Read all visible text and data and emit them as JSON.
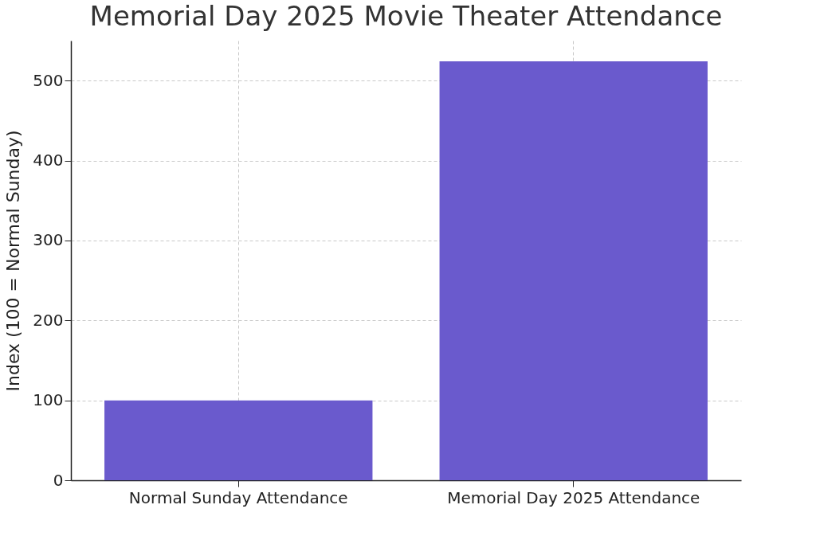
{
  "chart_data": {
    "type": "bar",
    "title": "Memorial Day 2025 Movie Theater Attendance",
    "ylabel": "Index (100 = Normal Sunday)",
    "categories": [
      "Normal Sunday Attendance",
      "Memorial Day 2025 Attendance"
    ],
    "values": [
      100,
      524
    ],
    "color": "#6a5acd",
    "ylim": [
      0,
      550
    ],
    "yticks": [
      0,
      100,
      200,
      300,
      400,
      500
    ],
    "grid": true
  }
}
